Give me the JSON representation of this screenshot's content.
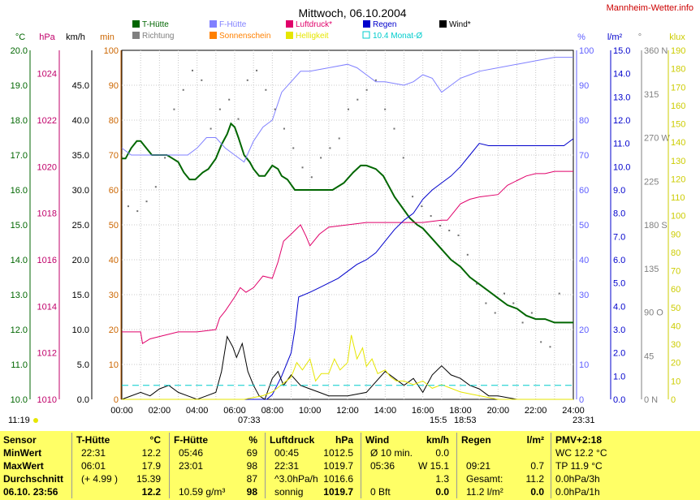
{
  "header": {
    "title": "Mittwoch, 06.10.2004",
    "site": "Mannheim-Wetter.info"
  },
  "legend": [
    {
      "name": "T-Hütte",
      "color": "#006600"
    },
    {
      "name": "F-Hütte",
      "color": "#8080ff"
    },
    {
      "name": "Luftdruck*",
      "color": "#e0006a"
    },
    {
      "name": "Regen",
      "color": "#0000cc"
    },
    {
      "name": "Wind*",
      "color": "#000000"
    },
    {
      "name": "Richtung",
      "color": "#808080"
    },
    {
      "name": "Sonnenschein",
      "color": "#ff8000"
    },
    {
      "name": "Helligkeit",
      "color": "#e6e600"
    },
    {
      "name": "10.4 Monat-Ø",
      "color": "#00cccc"
    }
  ],
  "axes": {
    "temp": {
      "unit": "°C",
      "ticks": [
        "20.0",
        "19.0",
        "18.0",
        "17.0",
        "16.0",
        "15.0",
        "14.0",
        "13.0",
        "12.0",
        "11.0",
        "10.0"
      ],
      "color": "#006600"
    },
    "pressure": {
      "unit": "hPa",
      "ticks": [
        "1024",
        "1022",
        "1020",
        "1018",
        "1016",
        "1014",
        "1012",
        "1010"
      ],
      "color": "#c0006a"
    },
    "wind": {
      "unit": "km/h",
      "ticks": [
        "45.0",
        "40.0",
        "35.0",
        "30.0",
        "25.0",
        "20.0",
        "15.0",
        "10.0",
        "5.0",
        "0.0"
      ],
      "color": "#000000"
    },
    "sun": {
      "unit": "min",
      "ticks": [
        "100",
        "90",
        "80",
        "70",
        "60",
        "50",
        "40",
        "30",
        "20",
        "10",
        "0"
      ],
      "color": "#cc6600"
    },
    "humidity": {
      "unit": "%",
      "ticks": [
        "100",
        "90",
        "80",
        "70",
        "60",
        "50",
        "40",
        "30",
        "20",
        "10",
        "0"
      ],
      "color": "#6060ff"
    },
    "rain": {
      "unit": "l/m²",
      "ticks": [
        "15.0",
        "14.0",
        "13.0",
        "12.0",
        "11.0",
        "10.0",
        "9.0",
        "8.0",
        "7.0",
        "6.0",
        "5.0",
        "4.0",
        "3.0",
        "2.0",
        "1.0",
        "0.0"
      ],
      "color": "#0000cc"
    },
    "direction": {
      "unit": "°",
      "ticks": [
        "360 N",
        "315",
        "270 W",
        "225",
        "180 S",
        "135",
        "90 O",
        "45",
        "0 N"
      ],
      "color": "#808080"
    },
    "lux": {
      "unit": "klux",
      "ticks": [
        "190",
        "180",
        "170",
        "160",
        "150",
        "140",
        "130",
        "120",
        "110",
        "100",
        "90",
        "80",
        "70",
        "60",
        "50",
        "40",
        "30",
        "20",
        "10",
        "0"
      ],
      "color": "#cccc00"
    }
  },
  "chart_data": {
    "type": "line",
    "x_label": "",
    "x_ticks": [
      "00:00",
      "02:00",
      "04:00",
      "06:00",
      "08:00",
      "10:00",
      "12:00",
      "14:00",
      "16:00",
      "18:00",
      "20:00",
      "22:00",
      "24:00"
    ],
    "x_range_hours": [
      0,
      24
    ],
    "grid": true,
    "series": [
      {
        "name": "T-Hütte",
        "axis": "temp",
        "color": "#006600",
        "x": [
          0,
          0.2,
          0.5,
          0.8,
          1.0,
          1.3,
          1.6,
          2.0,
          2.4,
          2.7,
          3.0,
          3.3,
          3.6,
          3.9,
          4.3,
          4.6,
          5.0,
          5.3,
          5.6,
          5.8,
          6.0,
          6.2,
          6.5,
          6.8,
          7.0,
          7.3,
          7.6,
          8.0,
          8.3,
          8.5,
          8.8,
          9.2,
          9.6,
          10.0,
          10.6,
          11.2,
          11.8,
          12.3,
          12.7,
          13.0,
          13.5,
          13.9,
          14.2,
          14.5,
          14.9,
          15.3,
          15.7,
          16.0,
          16.5,
          17.0,
          17.5,
          18.0,
          18.5,
          19.0,
          19.5,
          20.0,
          20.5,
          21.0,
          21.5,
          22.0,
          22.5,
          23.0,
          23.5,
          24.0
        ],
        "y": [
          16.9,
          16.9,
          17.2,
          17.4,
          17.4,
          17.2,
          17.0,
          17.0,
          17.0,
          16.9,
          16.8,
          16.5,
          16.3,
          16.3,
          16.5,
          16.6,
          16.9,
          17.3,
          17.6,
          17.9,
          17.8,
          17.5,
          17.0,
          16.8,
          16.6,
          16.4,
          16.4,
          16.7,
          16.6,
          16.4,
          16.3,
          16.0,
          16.0,
          16.0,
          16.0,
          16.0,
          16.2,
          16.5,
          16.7,
          16.7,
          16.6,
          16.4,
          16.1,
          15.8,
          15.5,
          15.2,
          15.0,
          14.9,
          14.6,
          14.3,
          14.0,
          13.8,
          13.5,
          13.3,
          13.1,
          12.9,
          12.7,
          12.6,
          12.4,
          12.3,
          12.3,
          12.2,
          12.2,
          12.2
        ]
      },
      {
        "name": "F-Hütte",
        "axis": "humidity",
        "color": "#8080ff",
        "x": [
          0,
          0.5,
          1.0,
          1.5,
          2.0,
          3.0,
          3.5,
          4.0,
          4.5,
          5.0,
          5.5,
          6.0,
          6.5,
          7.0,
          7.5,
          8.0,
          8.5,
          9.0,
          9.5,
          10.0,
          11.0,
          12.0,
          12.5,
          13.0,
          13.5,
          14.0,
          15.0,
          15.5,
          16.0,
          16.5,
          17.0,
          17.5,
          18.0,
          18.5,
          19.0,
          20.0,
          21.0,
          22.0,
          23.0,
          24.0
        ],
        "y": [
          72,
          70,
          70,
          70,
          70,
          70,
          70,
          72,
          75,
          75,
          72,
          70,
          68,
          74,
          78,
          80,
          88,
          91,
          94,
          94,
          95,
          96,
          95,
          93,
          91,
          91,
          90,
          91,
          93,
          92,
          88,
          90,
          92,
          93,
          94,
          95,
          96,
          97,
          98,
          98
        ]
      },
      {
        "name": "Luftdruck*",
        "axis": "pressure",
        "color": "#e0006a",
        "x": [
          0,
          1.0,
          1.1,
          1.5,
          2.0,
          3.0,
          4.0,
          5.0,
          5.2,
          5.5,
          6.0,
          6.3,
          6.6,
          7.0,
          7.5,
          8.0,
          8.3,
          8.6,
          9.0,
          9.5,
          9.8,
          10.0,
          10.5,
          11.0,
          12.0,
          13.0,
          14.0,
          15.0,
          16.0,
          17.0,
          17.3,
          17.8,
          18.0,
          18.5,
          19.0,
          20.0,
          20.5,
          21.0,
          21.5,
          22.0,
          22.5,
          23.0,
          24.0
        ],
        "y": [
          1012.9,
          1012.9,
          1012.4,
          1012.6,
          1012.7,
          1012.9,
          1012.9,
          1013.0,
          1013.5,
          1013.8,
          1014.4,
          1014.8,
          1014.6,
          1014.8,
          1015.3,
          1015.2,
          1015.9,
          1016.8,
          1017.1,
          1017.5,
          1017.0,
          1016.6,
          1017.1,
          1017.4,
          1017.5,
          1017.6,
          1017.6,
          1017.6,
          1017.6,
          1017.7,
          1017.7,
          1018.2,
          1018.4,
          1018.6,
          1018.7,
          1018.8,
          1019.2,
          1019.4,
          1019.6,
          1019.7,
          1019.7,
          1019.8,
          1019.8
        ]
      },
      {
        "name": "Regen",
        "axis": "rain",
        "color": "#0000cc",
        "x": [
          0,
          7.7,
          8.0,
          8.5,
          9.0,
          9.2,
          9.4,
          10.0,
          10.5,
          11.0,
          11.5,
          12.0,
          12.5,
          13.0,
          13.5,
          14.0,
          14.5,
          15.0,
          15.5,
          16.0,
          16.5,
          17.0,
          17.5,
          18.0,
          18.5,
          19.0,
          19.5,
          20.0,
          21.0,
          22.0,
          23.0,
          23.5,
          24.0
        ],
        "y": [
          0,
          0,
          0.2,
          1.0,
          2.0,
          3.0,
          4.4,
          4.6,
          4.8,
          5.0,
          5.2,
          5.5,
          5.8,
          6.0,
          6.3,
          6.8,
          7.3,
          7.7,
          8.0,
          8.6,
          9.0,
          9.3,
          9.6,
          10.0,
          10.5,
          11.0,
          10.9,
          10.9,
          10.9,
          10.9,
          10.9,
          10.9,
          11.2
        ]
      },
      {
        "name": "Wind*",
        "axis": "wind",
        "color": "#000000",
        "x": [
          0,
          1.0,
          1.5,
          2.0,
          2.5,
          3.0,
          3.5,
          4.0,
          4.5,
          5.0,
          5.3,
          5.6,
          5.9,
          6.1,
          6.4,
          6.7,
          7.0,
          7.3,
          7.6,
          8.0,
          8.3,
          8.6,
          9.0,
          9.5,
          10.0,
          10.5,
          11.0,
          12.0,
          13.0,
          14.0,
          14.5,
          15.0,
          15.5,
          16.0,
          16.5,
          17.0,
          17.5,
          18.0,
          18.5,
          19.0,
          19.5,
          20.0,
          21.0,
          22.0,
          23.0,
          24.0
        ],
        "y": [
          0,
          1.0,
          0.5,
          1.5,
          2.0,
          1.0,
          0.5,
          0,
          0.5,
          1.0,
          4.0,
          9.0,
          7.5,
          6.0,
          8.0,
          4.0,
          2.0,
          0.5,
          0,
          3.0,
          4.0,
          2.0,
          3.5,
          2.0,
          1.5,
          1.0,
          0.5,
          0.5,
          1.0,
          4.0,
          3.0,
          2.0,
          3.0,
          1.0,
          3.5,
          4.8,
          3.5,
          3.0,
          2.0,
          1.5,
          0.5,
          0.5,
          0,
          0,
          0,
          0
        ]
      },
      {
        "name": "Helligkeit",
        "axis": "lux",
        "color": "#e6e600",
        "x": [
          0,
          6.5,
          7.0,
          7.5,
          8.0,
          8.5,
          9.0,
          9.3,
          9.6,
          10.0,
          10.3,
          10.6,
          11.0,
          11.3,
          11.6,
          12.0,
          12.2,
          12.5,
          12.8,
          13.0,
          13.3,
          13.6,
          14.0,
          14.3,
          14.6,
          15.0,
          15.5,
          16.0,
          16.5,
          17.0,
          17.5,
          18.0,
          18.5,
          19.0,
          20.0,
          24.0
        ],
        "y": [
          0,
          0,
          1,
          2,
          4,
          8,
          12,
          20,
          16,
          22,
          10,
          14,
          14,
          22,
          16,
          20,
          35,
          22,
          28,
          18,
          22,
          14,
          16,
          12,
          10,
          10,
          8,
          10,
          6,
          8,
          6,
          4,
          3,
          2,
          0,
          0
        ]
      },
      {
        "name": "10.4 Monat-Ø",
        "axis": "temp",
        "color": "#00cccc",
        "x": [
          0,
          24
        ],
        "y": [
          10.4,
          10.4
        ]
      }
    ],
    "direction_samples_deg": [
      200,
      195,
      205,
      220,
      250,
      300,
      320,
      340,
      330,
      280,
      300,
      310,
      290,
      330,
      340,
      320,
      300,
      280,
      260,
      240,
      230,
      250,
      260,
      270,
      300,
      310,
      320,
      330,
      300,
      280,
      250,
      210,
      200,
      190,
      180,
      175,
      170,
      150,
      120,
      100,
      90,
      110,
      100,
      80,
      90,
      60,
      55,
      110
    ]
  },
  "footer": {
    "left_time": "11:19",
    "sunrise": "07:33",
    "noon_mark": "15:5",
    "sunset": "18:53",
    "end_time": "23:31"
  },
  "stats": {
    "col1": {
      "rows": [
        "Sensor",
        "MinWert",
        "MaxWert",
        "Durchschnitt",
        "06.10. 23:56"
      ]
    },
    "col2": {
      "title": "T-Hütte",
      "unit": "°C",
      "rows": [
        [
          "22:31",
          "12.2"
        ],
        [
          "06:01",
          "17.9"
        ],
        [
          "(+ 4.99 )",
          "15.39"
        ],
        [
          "",
          "12.2"
        ]
      ]
    },
    "col3": {
      "title": "F-Hütte",
      "unit": "%",
      "rows": [
        [
          "05:46",
          "69"
        ],
        [
          "23:01",
          "98"
        ],
        [
          "",
          "87"
        ],
        [
          "10.59 g/m³",
          "98"
        ]
      ]
    },
    "col4": {
      "title": "Luftdruck",
      "unit": "hPa",
      "rows": [
        [
          "00:45",
          "1012.5"
        ],
        [
          "22:31",
          "1019.7"
        ],
        [
          "^3.0hPa/h",
          "1016.6"
        ],
        [
          "sonnig",
          "1019.7"
        ]
      ]
    },
    "col5": {
      "title": "Wind",
      "unit": "km/h",
      "rows": [
        [
          "Ø 10 min.",
          "0.0"
        ],
        [
          "05:36",
          "W 15.1"
        ],
        [
          "",
          "1.3"
        ],
        [
          "0 Bft",
          "0.0"
        ]
      ]
    },
    "col6": {
      "title": "Regen",
      "unit": "l/m²",
      "rows": [
        [
          "",
          ""
        ],
        [
          "09:21",
          "0.7"
        ],
        [
          "Gesamt:",
          "11.2"
        ],
        [
          "11.2 l/m²",
          "0.0"
        ]
      ]
    },
    "col7": {
      "title": "PMV+2:18",
      "rows": [
        "WC 12.2 °C",
        "TP 11.9 °C",
        "0.0hPa/3h",
        "0.0hPa/1h"
      ]
    }
  }
}
